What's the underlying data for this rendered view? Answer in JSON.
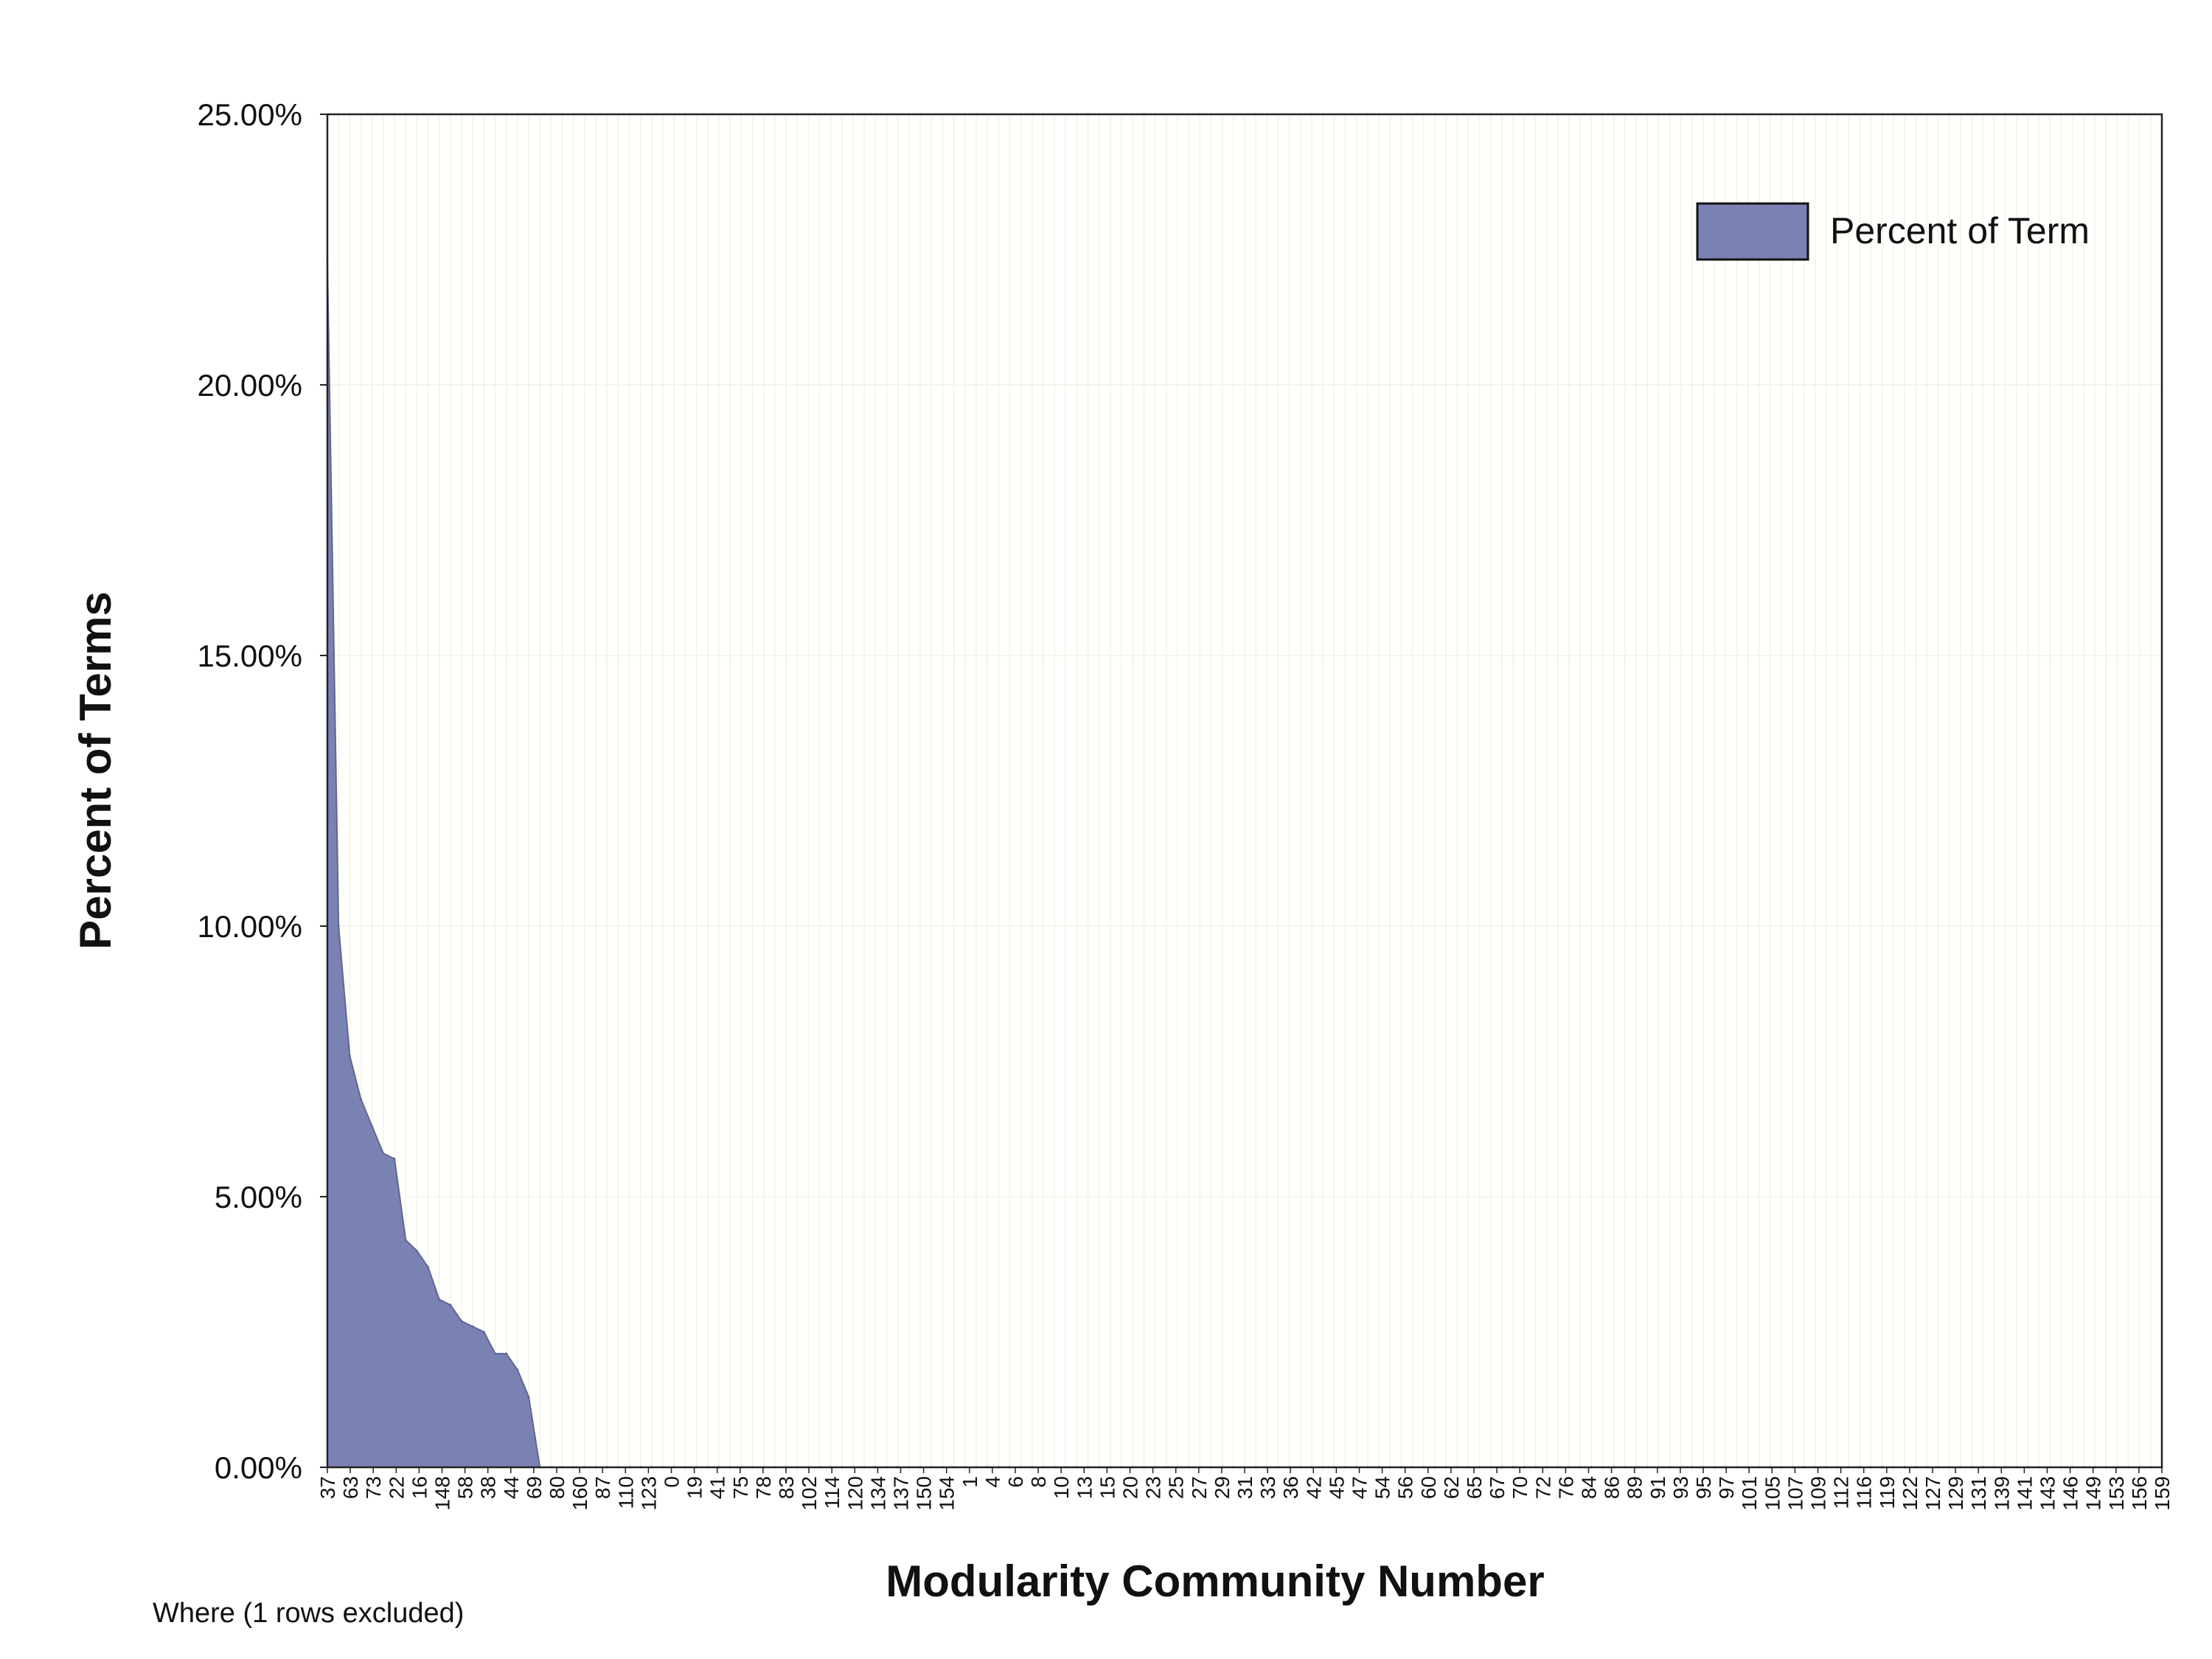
{
  "colors": {
    "area_fill": "#7a81b3",
    "area_stroke": "#5f6699",
    "grid": "#f2f2e6",
    "axis": "#222222",
    "background": "#fffffd"
  },
  "note": "Where (1 rows excluded)",
  "chart_data": {
    "type": "area",
    "title": "",
    "xlabel": "Modularity Community Number",
    "ylabel": "Percent of Terms",
    "ylim": [
      0,
      25
    ],
    "y_ticks": [
      "0.00%",
      "5.00%",
      "10.00%",
      "15.00%",
      "20.00%",
      "25.00%"
    ],
    "y_tick_values": [
      0,
      5,
      10,
      15,
      20,
      25
    ],
    "grid": true,
    "legend_position": "top-right",
    "x_tick_labels": [
      "37",
      "63",
      "73",
      "22",
      "16",
      "148",
      "58",
      "38",
      "44",
      "69",
      "80",
      "160",
      "87",
      "110",
      "123",
      "0",
      "19",
      "41",
      "75",
      "78",
      "83",
      "102",
      "114",
      "120",
      "134",
      "137",
      "150",
      "154",
      "1",
      "4",
      "6",
      "8",
      "10",
      "13",
      "15",
      "20",
      "23",
      "25",
      "27",
      "29",
      "31",
      "33",
      "36",
      "42",
      "45",
      "47",
      "54",
      "56",
      "60",
      "62",
      "65",
      "67",
      "70",
      "72",
      "76",
      "84",
      "86",
      "89",
      "91",
      "93",
      "95",
      "97",
      "101",
      "105",
      "107",
      "109",
      "112",
      "116",
      "119",
      "122",
      "127",
      "129",
      "131",
      "139",
      "141",
      "143",
      "146",
      "149",
      "153",
      "156",
      "159"
    ],
    "series": [
      {
        "name": "Percent of Term",
        "values": [
          22.3,
          10.0,
          7.6,
          6.8,
          6.3,
          5.8,
          5.7,
          4.2,
          4.0,
          3.7,
          3.1,
          3.0,
          2.7,
          2.6,
          2.5,
          2.1,
          2.1,
          1.8,
          1.3,
          0,
          0,
          0,
          0,
          0,
          0,
          0,
          0,
          0,
          0,
          0,
          0,
          0,
          0,
          0,
          0,
          0,
          0,
          0,
          0,
          0,
          0,
          0,
          0,
          0,
          0,
          0,
          0,
          0,
          0,
          0,
          0,
          0,
          0,
          0,
          0,
          0,
          0,
          0,
          0,
          0,
          0,
          0,
          0,
          0,
          0,
          0,
          0,
          0,
          0,
          0,
          0,
          0,
          0,
          0,
          0,
          0,
          0,
          0,
          0,
          0,
          0,
          0,
          0,
          0,
          0,
          0,
          0,
          0,
          0,
          0,
          0,
          0,
          0,
          0,
          0,
          0,
          0,
          0,
          0,
          0,
          0,
          0,
          0,
          0,
          0,
          0,
          0,
          0,
          0,
          0,
          0,
          0,
          0,
          0,
          0,
          0,
          0,
          0,
          0,
          0,
          0,
          0,
          0,
          0,
          0,
          0,
          0,
          0,
          0,
          0,
          0,
          0,
          0,
          0,
          0,
          0,
          0,
          0,
          0,
          0,
          0,
          0,
          0,
          0,
          0,
          0,
          0,
          0,
          0,
          0,
          0,
          0,
          0,
          0,
          0,
          0,
          0,
          0,
          0,
          0,
          0,
          0,
          0,
          0,
          0
        ]
      }
    ]
  }
}
